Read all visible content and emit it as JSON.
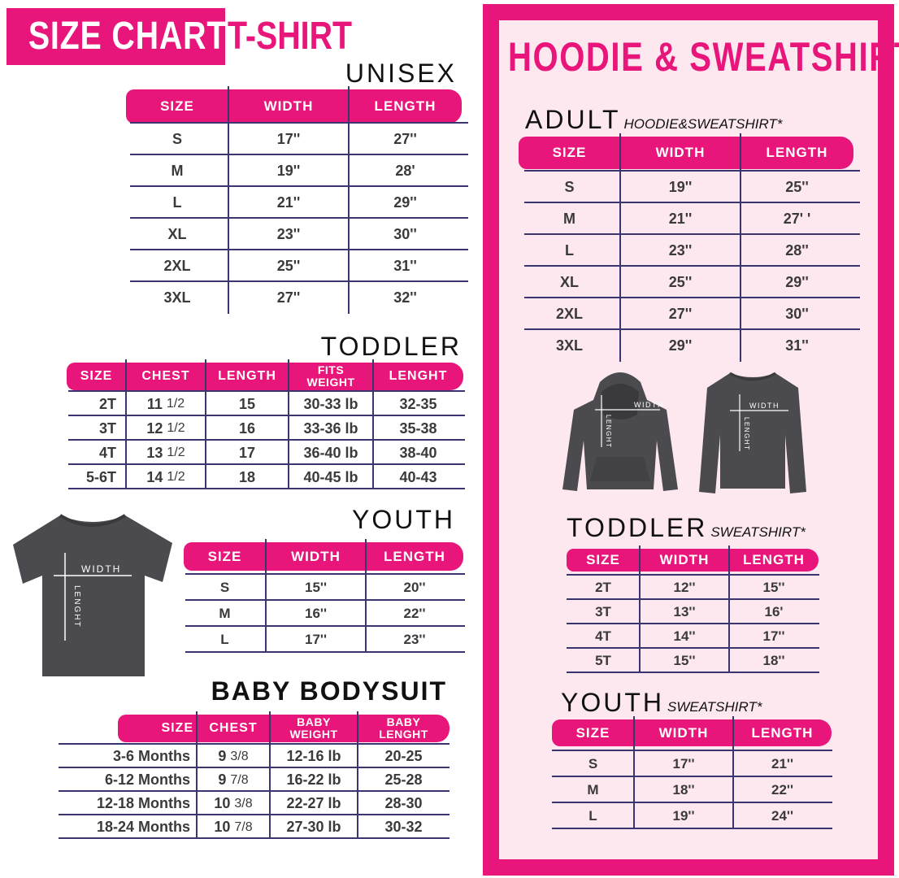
{
  "header": {
    "size_chart": "SIZE CHART",
    "tshirt": "T-SHIRT"
  },
  "colors": {
    "accent": "#e8167a",
    "panel_bg": "#fde8ef",
    "text": "#3a3a3a",
    "rule": "#3a3570",
    "garment": "#4b4b4f"
  },
  "tshirt_figure": {
    "width_label": "WIDTH",
    "length_label": "LENGHT"
  },
  "tables": {
    "unisex": {
      "label": "UNISEX",
      "headers": [
        "SIZE",
        "WIDTH",
        "LENGTH"
      ],
      "rows": [
        [
          "S",
          "17''",
          "27''"
        ],
        [
          "M",
          "19''",
          "28'"
        ],
        [
          "L",
          "21''",
          "29''"
        ],
        [
          "XL",
          "23''",
          "30''"
        ],
        [
          "2XL",
          "25''",
          "31''"
        ],
        [
          "3XL",
          "27''",
          "32''"
        ]
      ]
    },
    "toddler": {
      "label": "TODDLER",
      "headers": [
        "SIZE",
        "CHEST",
        "LENGTH",
        "FITS\nWEIGHT",
        "LENGHT"
      ],
      "rows": [
        [
          "2T",
          "11 1/2",
          "15",
          "30-33 lb",
          "32-35"
        ],
        [
          "3T",
          "12 1/2",
          "16",
          "33-36 lb",
          "35-38"
        ],
        [
          "4T",
          "13 1/2",
          "17",
          "36-40 lb",
          "38-40"
        ],
        [
          "5-6T",
          "14 1/2",
          "18",
          "40-45 lb",
          "40-43"
        ]
      ]
    },
    "youth": {
      "label": "YOUTH",
      "headers": [
        "SIZE",
        "WIDTH",
        "LENGTH"
      ],
      "rows": [
        [
          "S",
          "15''",
          "20''"
        ],
        [
          "M",
          "16''",
          "22''"
        ],
        [
          "L",
          "17''",
          "23''"
        ]
      ]
    },
    "baby": {
      "label": "BABY BODYSUIT",
      "headers": [
        "SIZE",
        "CHEST",
        "BABY\nWEIGHT",
        "BABY\nLENGHT"
      ],
      "rows": [
        [
          "3-6 Months",
          "9 3/8",
          "12-16 lb",
          "20-25"
        ],
        [
          "6-12 Months",
          "9 7/8",
          "16-22 lb",
          "25-28"
        ],
        [
          "12-18 Months",
          "10 3/8",
          "22-27 lb",
          "28-30"
        ],
        [
          "18-24 Months",
          "10 7/8",
          "27-30 lb",
          "30-32"
        ]
      ]
    },
    "hoodie_adult": {
      "label": "ADULT",
      "sublabel": "HOODIE&SWEATSHIRT*",
      "headers": [
        "SIZE",
        "WIDTH",
        "LENGTH"
      ],
      "rows": [
        [
          "S",
          "19''",
          "25''"
        ],
        [
          "M",
          "21''",
          "27' '"
        ],
        [
          "L",
          "23''",
          "28''"
        ],
        [
          "XL",
          "25''",
          "29''"
        ],
        [
          "2XL",
          "27''",
          "30''"
        ],
        [
          "3XL",
          "29''",
          "31''"
        ]
      ]
    },
    "sweat_toddler": {
      "label": "TODDLER",
      "sublabel": "SWEATSHIRT*",
      "headers": [
        "SIZE",
        "WIDTH",
        "LENGTH"
      ],
      "rows": [
        [
          "2T",
          "12''",
          "15''"
        ],
        [
          "3T",
          "13''",
          "16'"
        ],
        [
          "4T",
          "14''",
          "17''"
        ],
        [
          "5T",
          "15''",
          "18''"
        ]
      ]
    },
    "sweat_youth": {
      "label": "YOUTH",
      "sublabel": "SWEATSHIRT*",
      "headers": [
        "SIZE",
        "WIDTH",
        "LENGTH"
      ],
      "rows": [
        [
          "S",
          "17''",
          "21''"
        ],
        [
          "M",
          "18''",
          "22''"
        ],
        [
          "L",
          "19''",
          "24''"
        ]
      ]
    }
  },
  "panel": {
    "title": "HOODIE & SWEATSHIRT"
  },
  "hoodie_figure": {
    "width_label": "WIDTH",
    "length_label": "LENGHT"
  },
  "sweatshirt_figure": {
    "width_label": "WIDTH",
    "length_label": "LENGHT"
  }
}
